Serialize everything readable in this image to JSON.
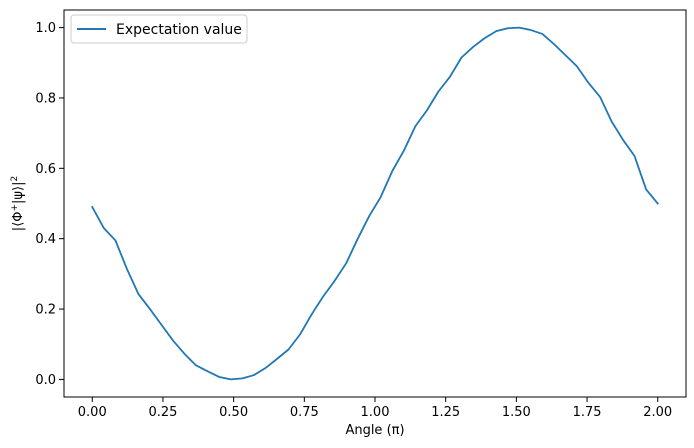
{
  "chart_data": {
    "type": "line",
    "title": "",
    "xlabel": "Angle (π)",
    "ylabel_parts": {
      "pre": "|⟨Φ",
      "sup1": "+",
      "mid": "|ψ⟩|",
      "sup2": "2"
    },
    "xlim": [
      -0.1,
      2.1
    ],
    "ylim": [
      -0.05,
      1.05
    ],
    "xticks": [
      0.0,
      0.25,
      0.5,
      0.75,
      1.0,
      1.25,
      1.5,
      1.75,
      2.0
    ],
    "xtick_labels": [
      "0.00",
      "0.25",
      "0.50",
      "0.75",
      "1.00",
      "1.25",
      "1.50",
      "1.75",
      "2.00"
    ],
    "yticks": [
      0.0,
      0.2,
      0.4,
      0.6,
      0.8,
      1.0
    ],
    "ytick_labels": [
      "0.0",
      "0.2",
      "0.4",
      "0.6",
      "0.8",
      "1.0"
    ],
    "grid": false,
    "legend_position": "top-left",
    "series": [
      {
        "name": "Expectation value",
        "color": "#1f77b4",
        "x": [
          0.0,
          0.041,
          0.082,
          0.122,
          0.163,
          0.204,
          0.245,
          0.286,
          0.327,
          0.367,
          0.408,
          0.449,
          0.49,
          0.531,
          0.571,
          0.612,
          0.653,
          0.694,
          0.735,
          0.776,
          0.816,
          0.857,
          0.898,
          0.939,
          0.98,
          1.02,
          1.061,
          1.102,
          1.143,
          1.184,
          1.224,
          1.265,
          1.306,
          1.347,
          1.388,
          1.429,
          1.469,
          1.51,
          1.551,
          1.592,
          1.633,
          1.673,
          1.714,
          1.755,
          1.796,
          1.837,
          1.878,
          1.918,
          1.959,
          2.0
        ],
        "y": [
          0.49,
          0.43,
          0.395,
          0.315,
          0.243,
          0.2,
          0.155,
          0.11,
          0.072,
          0.04,
          0.023,
          0.007,
          0.0,
          0.003,
          0.012,
          0.032,
          0.058,
          0.085,
          0.128,
          0.185,
          0.235,
          0.28,
          0.33,
          0.4,
          0.465,
          0.518,
          0.592,
          0.65,
          0.72,
          0.765,
          0.818,
          0.86,
          0.915,
          0.945,
          0.97,
          0.99,
          0.998,
          1.0,
          0.993,
          0.982,
          0.953,
          0.922,
          0.89,
          0.843,
          0.803,
          0.733,
          0.68,
          0.635,
          0.54,
          0.5
        ]
      }
    ]
  }
}
